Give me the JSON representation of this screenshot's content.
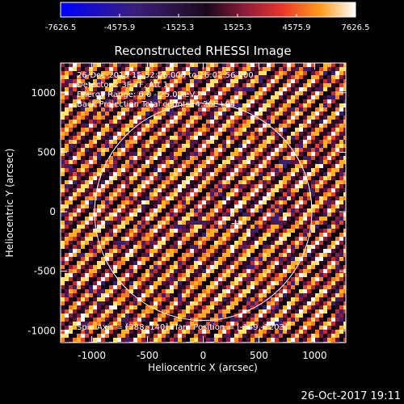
{
  "chart_data": {
    "type": "heatmap",
    "title": "Reconstructed RHESSI Image",
    "xlabel": "Heliocentric X (arcsec)",
    "ylabel": "Heliocentric Y (arcsec)",
    "xlim": [
      -1280,
      1280
    ],
    "ylim": [
      -1100,
      1250
    ],
    "x_ticks": [
      "-1000",
      "-500",
      "0",
      "500",
      "1000"
    ],
    "x_tick_values": [
      -1000,
      -500,
      0,
      500,
      1000
    ],
    "y_ticks": [
      "1000",
      "500",
      "0",
      "-500",
      "-1000"
    ],
    "y_tick_values": [
      1000,
      500,
      0,
      -500,
      -1000
    ],
    "colorbar": {
      "ticks": [
        "-7626.5",
        "-4575.9",
        "-1525.3",
        "1525.3",
        "4575.9",
        "7626.5"
      ],
      "min": -7626.5,
      "max": 7626.5
    },
    "annotations": [
      "26-Dec-2015 15:52:56.000 to 16:02:56.000",
      "Detectors: 3F 7F, Att 1",
      "Energy Range: 6.0 - 25.0 keV",
      "Back Projection    Total counts: 4.26E+04"
    ],
    "footer_annotation": "Spin Axis = [288,-140]  Flare Position = [-149,-1203]",
    "solar_limb_radius": 975,
    "marker": [
      290,
      -100
    ],
    "grid": false,
    "colormap": "blue-red-yellow-white (diverging)"
  },
  "timestamp": "26-Oct-2017 19:11",
  "colors": {
    "background": "#000000",
    "foreground": "#ffffff"
  }
}
